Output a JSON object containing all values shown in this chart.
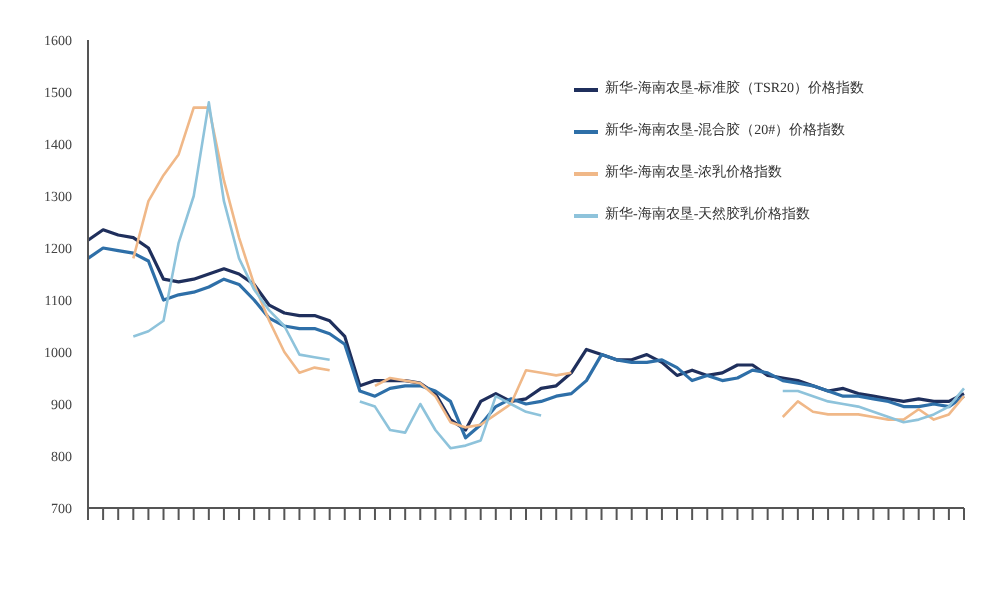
{
  "chart_data": {
    "type": "line",
    "categories": [
      null,
      null,
      null,
      null,
      null,
      null,
      null,
      null,
      null,
      null,
      null,
      null,
      null,
      null,
      null,
      null,
      null,
      null,
      null,
      null,
      null,
      null,
      null,
      null,
      null,
      null,
      null,
      null,
      null,
      null,
      null,
      null,
      null,
      null,
      null,
      null,
      null,
      null,
      null,
      null,
      null,
      null,
      null,
      null,
      null,
      null,
      null,
      null,
      null,
      null,
      null,
      null,
      null,
      null,
      null,
      null,
      null,
      null,
      null
    ],
    "series": [
      {
        "name": "新华-海南农垦-标准胶（TSR20）价格指数",
        "color": "#1f2f5c",
        "values": [
          1215,
          1235,
          1225,
          1220,
          1200,
          1140,
          1135,
          1140,
          1150,
          1160,
          1150,
          1130,
          1090,
          1075,
          1070,
          1070,
          1060,
          1030,
          935,
          945,
          945,
          945,
          940,
          920,
          870,
          850,
          905,
          920,
          905,
          910,
          930,
          935,
          960,
          1005,
          995,
          985,
          985,
          995,
          980,
          955,
          965,
          955,
          960,
          975,
          975,
          955,
          950,
          945,
          935,
          925,
          930,
          920,
          915,
          910,
          905,
          910,
          905,
          905,
          920
        ]
      },
      {
        "name": "新华-海南农垦-混合胶（20#）价格指数",
        "color": "#2e6fa8",
        "values": [
          1180,
          1200,
          1195,
          1190,
          1175,
          1100,
          1110,
          1115,
          1125,
          1140,
          1130,
          1100,
          1065,
          1050,
          1045,
          1045,
          1035,
          1015,
          925,
          915,
          930,
          935,
          935,
          925,
          905,
          835,
          860,
          895,
          910,
          900,
          905,
          915,
          920,
          945,
          995,
          985,
          980,
          980,
          985,
          970,
          945,
          955,
          945,
          950,
          965,
          960,
          945,
          940,
          935,
          925,
          915,
          915,
          910,
          905,
          895,
          895,
          900,
          895,
          915
        ]
      },
      {
        "name": "新华-海南农垦-浓乳价格指数",
        "color": "#f0b888",
        "values": [
          null,
          null,
          null,
          1180,
          1290,
          1340,
          1380,
          1470,
          1470,
          1330,
          1220,
          1130,
          1060,
          1000,
          960,
          970,
          965,
          null,
          null,
          935,
          950,
          945,
          940,
          915,
          865,
          855,
          860,
          880,
          900,
          965,
          960,
          955,
          960,
          null,
          null,
          null,
          null,
          null,
          null,
          null,
          null,
          null,
          null,
          null,
          null,
          null,
          875,
          905,
          885,
          880,
          880,
          880,
          875,
          870,
          870,
          890,
          870,
          880,
          915
        ]
      },
      {
        "name": "新华-海南农垦-天然胶乳价格指数",
        "color": "#8ec3db",
        "values": [
          null,
          null,
          null,
          1030,
          1040,
          1060,
          1210,
          1300,
          1480,
          1290,
          1180,
          1120,
          1080,
          1050,
          995,
          990,
          985,
          null,
          905,
          895,
          850,
          845,
          900,
          850,
          815,
          820,
          830,
          915,
          900,
          885,
          878,
          null,
          null,
          null,
          null,
          null,
          null,
          null,
          null,
          null,
          null,
          null,
          null,
          null,
          null,
          null,
          925,
          925,
          915,
          905,
          900,
          895,
          885,
          875,
          865,
          870,
          880,
          895,
          930
        ]
      }
    ],
    "ylim": [
      700,
      1600
    ],
    "yticks": [
      700,
      800,
      900,
      1000,
      1100,
      1200,
      1300,
      1400,
      1500,
      1600
    ],
    "grid": false,
    "legend": "top right",
    "marker": "none",
    "line_style": "solid",
    "tick_labels": "y"
  }
}
